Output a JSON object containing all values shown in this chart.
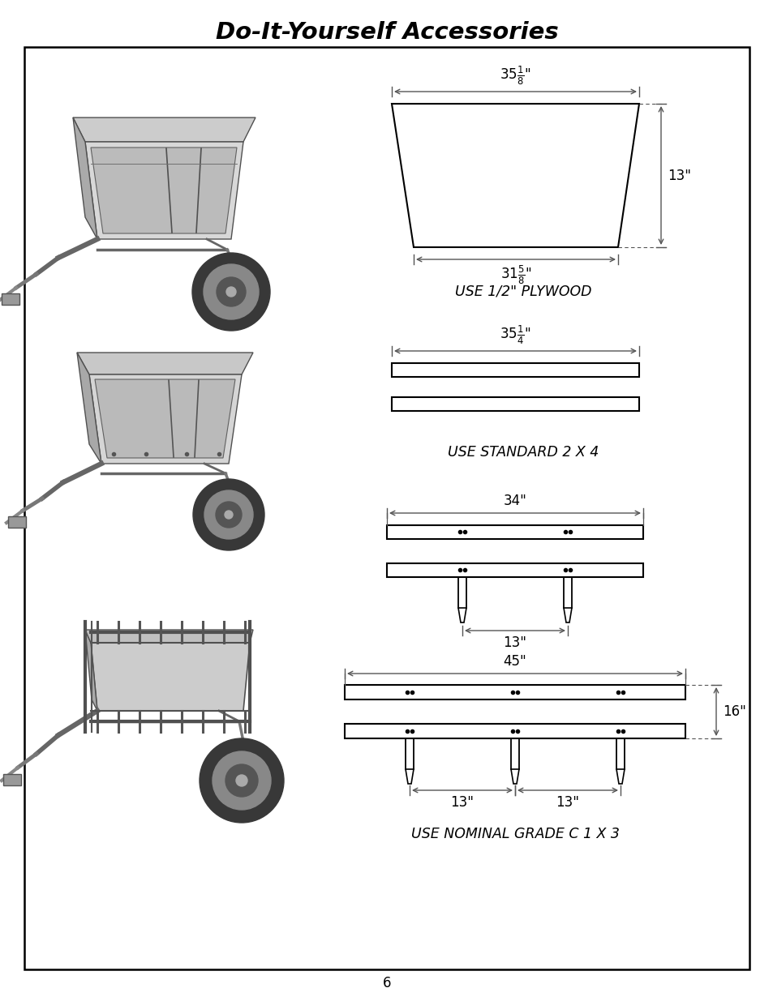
{
  "title": "Do-It-Yourself Accessories",
  "page_number": "6",
  "bg": "#ffffff",
  "lc": "#000000",
  "dc": "#555555",
  "view1_label": "USE 1/2\" PLYWOOD",
  "view2_label": "USE STANDARD 2 X 4",
  "view3_label": "USE NOMINAL GRADE C 1 X 3",
  "v1_top_whole": "35",
  "v1_top_num": "1",
  "v1_top_den": "8",
  "v1_bot_whole": "31",
  "v1_bot_num": "5",
  "v1_bot_den": "8",
  "v1_right": "13\"",
  "v2_top_whole": "35",
  "v2_top_num": "1",
  "v2_top_den": "4",
  "v3a_top": "34\"",
  "v3a_mid": "13\"",
  "v3b_top": "45\"",
  "v3b_right": "16\"",
  "v3b_bl": "13\"",
  "v3b_br": "13\""
}
